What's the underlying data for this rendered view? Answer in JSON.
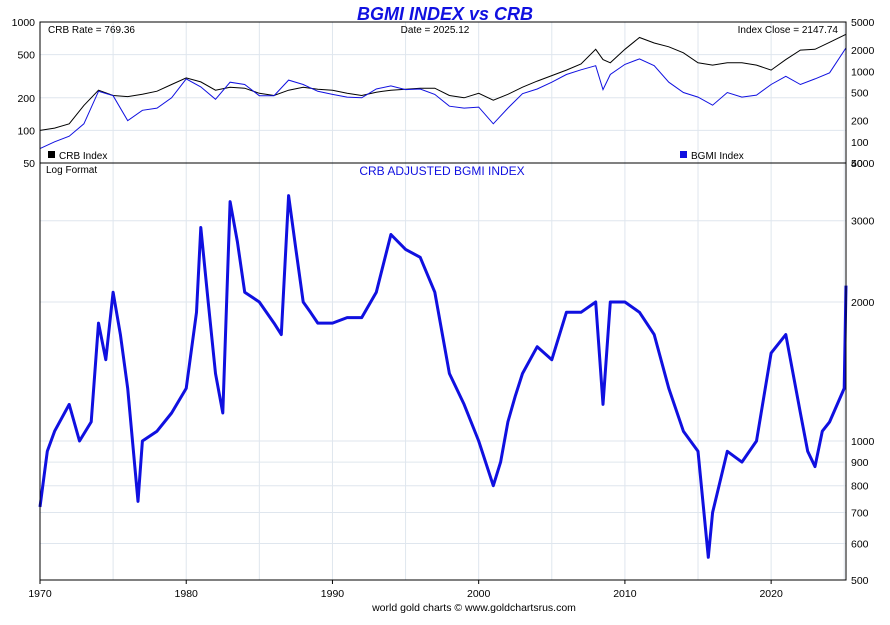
{
  "chart_data": [
    {
      "type": "line",
      "title": "BGMI INDEX vs CRB",
      "info": {
        "crb_rate": "CRB Rate = 769.36",
        "date": "Date = 2025.12",
        "index_close": "Index Close = 2147.74"
      },
      "legend": [
        {
          "label": "CRB Index",
          "color": "#000000"
        },
        {
          "label": "BGMI Index",
          "color": "#1010e0"
        }
      ],
      "left_axis": {
        "scale": "log",
        "ylim": [
          50,
          1000
        ],
        "ticks": [
          "1000",
          "500",
          "200",
          "100",
          "50"
        ]
      },
      "right_axis": {
        "scale": "log",
        "ylim": [
          50,
          5000
        ],
        "ticks": [
          "5000",
          "2000",
          "1000",
          "500",
          "200",
          "100",
          "50"
        ]
      },
      "series": [
        {
          "name": "CRB Index",
          "color": "#000000",
          "x": [
            1970,
            1971,
            1972,
            1973,
            1974,
            1975,
            1976,
            1977,
            1978,
            1979,
            1980,
            1981,
            1982,
            1983,
            1984,
            1985,
            1986,
            1987,
            1988,
            1989,
            1990,
            1991,
            1992,
            1993,
            1994,
            1995,
            1996,
            1997,
            1998,
            1999,
            2000,
            2001,
            2002,
            2003,
            2004,
            2005,
            2006,
            2007,
            2008,
            2008.5,
            2009,
            2010,
            2011,
            2012,
            2013,
            2014,
            2015,
            2016,
            2017,
            2018,
            2019,
            2020,
            2021,
            2022,
            2023,
            2024,
            2025.12
          ],
          "y": [
            100,
            105,
            115,
            170,
            235,
            210,
            205,
            215,
            230,
            265,
            305,
            280,
            235,
            250,
            245,
            220,
            210,
            235,
            250,
            240,
            235,
            220,
            210,
            225,
            235,
            240,
            245,
            245,
            210,
            200,
            220,
            190,
            215,
            250,
            285,
            320,
            360,
            410,
            560,
            450,
            420,
            560,
            720,
            640,
            590,
            520,
            420,
            400,
            420,
            420,
            400,
            360,
            450,
            550,
            560,
            650,
            769.36
          ]
        },
        {
          "name": "BGMI Index",
          "color": "#1010e0",
          "x": [
            1970,
            1971,
            1972,
            1973,
            1974,
            1975,
            1976,
            1977,
            1978,
            1979,
            1980,
            1981,
            1982,
            1983,
            1984,
            1985,
            1986,
            1987,
            1988,
            1989,
            1990,
            1991,
            1992,
            1993,
            1994,
            1995,
            1996,
            1997,
            1998,
            1999,
            2000,
            2001,
            2002,
            2003,
            2004,
            2005,
            2006,
            2007,
            2008,
            2008.5,
            2009,
            2010,
            2011,
            2012,
            2013,
            2014,
            2015,
            2016,
            2017,
            2018,
            2019,
            2020,
            2021,
            2022,
            2023,
            2024,
            2025.12
          ],
          "y": [
            80,
            100,
            120,
            180,
            520,
            450,
            200,
            280,
            300,
            420,
            780,
            600,
            400,
            700,
            650,
            450,
            450,
            750,
            650,
            520,
            470,
            430,
            420,
            560,
            620,
            550,
            560,
            470,
            320,
            300,
            310,
            180,
            300,
            480,
            560,
            700,
            900,
            1050,
            1200,
            550,
            900,
            1250,
            1500,
            1200,
            700,
            500,
            430,
            330,
            500,
            430,
            460,
            650,
            850,
            650,
            780,
            950,
            2147.74
          ]
        }
      ]
    },
    {
      "type": "line",
      "title": "CRB ADJUSTED BGMI INDEX",
      "annotation": "Log Format",
      "xlim": [
        1970,
        2025.12
      ],
      "x_ticks": [
        "1970",
        "1980",
        "1990",
        "2000",
        "2010",
        "2020"
      ],
      "right_axis": {
        "scale": "log",
        "ylim": [
          500,
          4000
        ],
        "ticks": [
          "4000",
          "3000",
          "2000",
          "1000",
          "900",
          "800",
          "700",
          "600",
          "500"
        ]
      },
      "series": [
        {
          "color": "#1010e0",
          "x": [
            1970,
            1970.5,
            1971,
            1972,
            1972.7,
            1973.5,
            1974,
            1974.5,
            1975,
            1975.5,
            1976,
            1976.7,
            1977,
            1978,
            1979,
            1980,
            1980.7,
            1981,
            1981.5,
            1982,
            1982.5,
            1983,
            1983.5,
            1984,
            1985,
            1986,
            1986.5,
            1987,
            1987.5,
            1988,
            1988.5,
            1989,
            1990,
            1991,
            1992,
            1993,
            1994,
            1995,
            1996,
            1997,
            1998,
            1999,
            2000,
            2001,
            2001.5,
            2002,
            2002.5,
            2003,
            2004,
            2005,
            2006,
            2007,
            2008,
            2008.5,
            2009,
            2010,
            2011,
            2012,
            2013,
            2014,
            2015,
            2015.7,
            2016,
            2017,
            2018,
            2019,
            2020,
            2021,
            2022,
            2022.5,
            2023,
            2023.5,
            2024,
            2025,
            2025.12
          ],
          "y": [
            720,
            950,
            1050,
            1200,
            1000,
            1100,
            1800,
            1500,
            2100,
            1700,
            1300,
            740,
            1000,
            1050,
            1150,
            1300,
            1900,
            2900,
            2000,
            1400,
            1150,
            3300,
            2700,
            2100,
            2000,
            1800,
            1700,
            3400,
            2600,
            2000,
            1900,
            1800,
            1800,
            1850,
            1850,
            2100,
            2800,
            2600,
            2500,
            2100,
            1400,
            1200,
            1000,
            800,
            900,
            1100,
            1250,
            1400,
            1600,
            1500,
            1900,
            1900,
            2000,
            1200,
            2000,
            2000,
            1900,
            1700,
            1300,
            1050,
            950,
            560,
            700,
            950,
            900,
            1000,
            1550,
            1700,
            1150,
            950,
            880,
            1050,
            1100,
            1300,
            2170
          ]
        }
      ]
    }
  ],
  "footer": {
    "credit": "world gold charts © www.goldchartsrus.com"
  }
}
